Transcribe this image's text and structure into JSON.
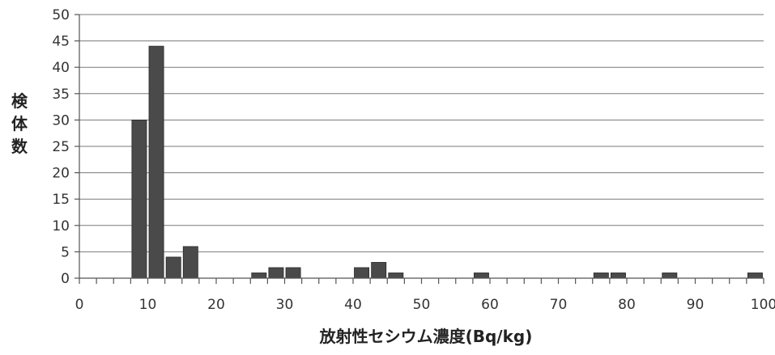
{
  "chart_data": {
    "type": "bar",
    "ylabel": "検体数",
    "xlabel": "放射性セシウム濃度(Bq/kg)",
    "xlim": [
      0,
      100
    ],
    "ylim": [
      0,
      50
    ],
    "x_ticks": [
      "0",
      "10",
      "20",
      "30",
      "40",
      "50",
      "60",
      "70",
      "80",
      "90",
      "100"
    ],
    "y_ticks": [
      "0",
      "5",
      "10",
      "15",
      "20",
      "25",
      "30",
      "35",
      "40",
      "45",
      "50"
    ],
    "grid": true,
    "bin_width": 2.5,
    "bars": [
      {
        "x": 7.5,
        "value": 30
      },
      {
        "x": 10,
        "value": 44
      },
      {
        "x": 12.5,
        "value": 4
      },
      {
        "x": 15,
        "value": 6
      },
      {
        "x": 25,
        "value": 1
      },
      {
        "x": 27.5,
        "value": 2
      },
      {
        "x": 30,
        "value": 2
      },
      {
        "x": 40,
        "value": 2
      },
      {
        "x": 42.5,
        "value": 3
      },
      {
        "x": 45,
        "value": 1
      },
      {
        "x": 57.5,
        "value": 1
      },
      {
        "x": 75,
        "value": 1
      },
      {
        "x": 77.5,
        "value": 1
      },
      {
        "x": 85,
        "value": 1
      },
      {
        "x": 97.5,
        "value": 1
      }
    ]
  }
}
